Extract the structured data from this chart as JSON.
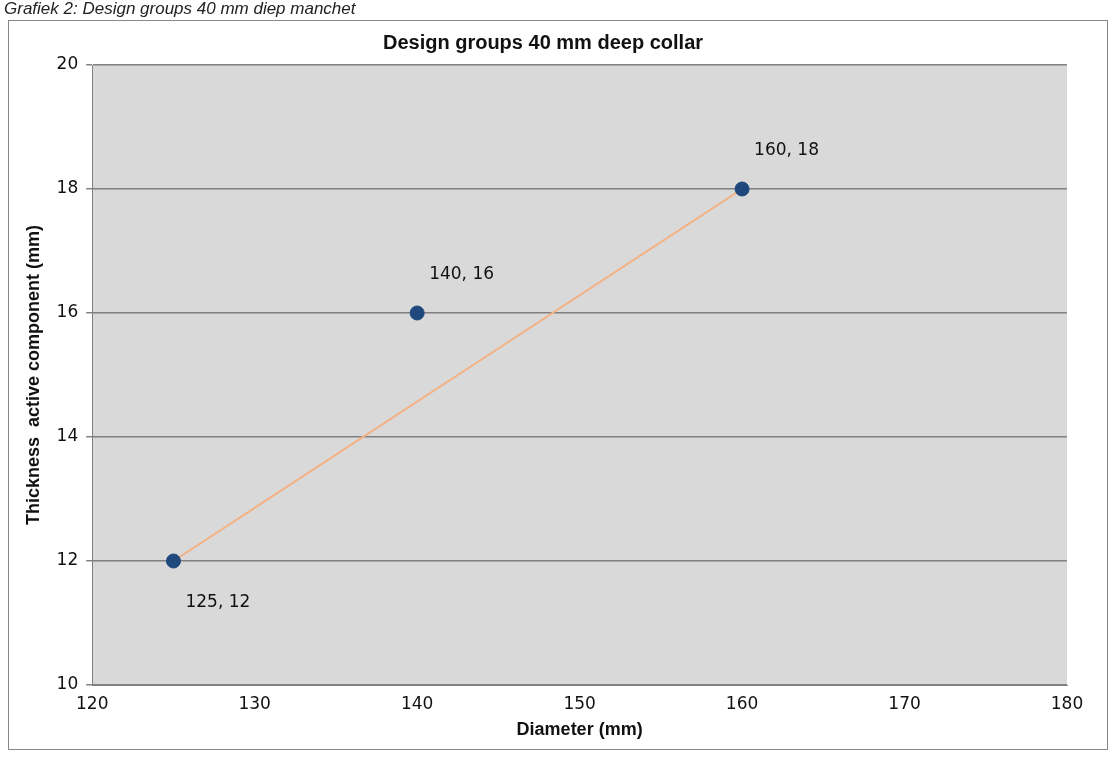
{
  "chart_data": {
    "type": "scatter",
    "title": "Design groups 40 mm deep collar",
    "xlabel": "Diameter (mm)",
    "ylabel": "Thickness  active component (mm)",
    "annotations": [
      "Grafiek 2: Design groups 40 mm diep manchet"
    ],
    "series": [
      {
        "type": "line",
        "x": [
          125,
          160
        ],
        "values": [
          12,
          18
        ],
        "color": "#f4b183",
        "marker": "none"
      },
      {
        "x": [
          125,
          160
        ],
        "values": [
          12,
          18
        ],
        "color": "#1f497d",
        "value_labels": [
          "125, 12",
          "160, 18"
        ]
      },
      {
        "x": [
          140
        ],
        "values": [
          16
        ],
        "color": "#1f497d",
        "value_labels": [
          "140, 16"
        ]
      }
    ],
    "xlim": [
      120,
      180
    ],
    "xticks": [
      120,
      130,
      140,
      150,
      160,
      170,
      180
    ],
    "ylim": [
      10,
      20
    ],
    "yticks": [
      10,
      12,
      14,
      16,
      18,
      20
    ],
    "grid": "y",
    "legend": false,
    "marker": "circle"
  }
}
